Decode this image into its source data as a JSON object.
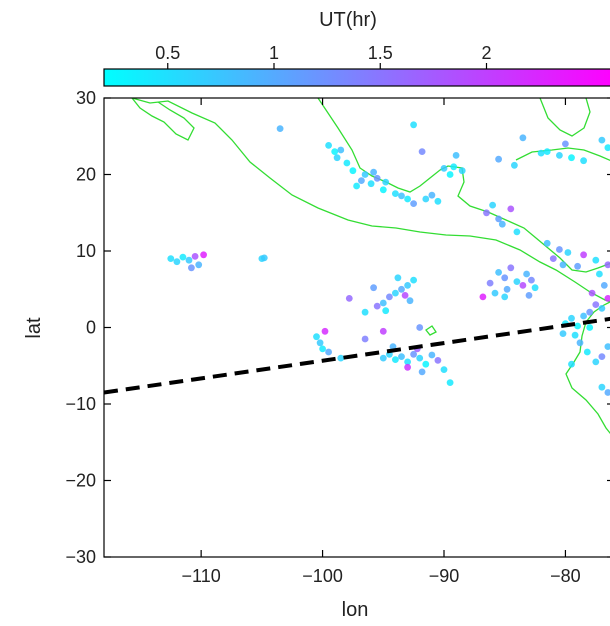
{
  "chart_data": {
    "type": "scatter",
    "title": "",
    "xlabel": "lon",
    "ylabel": "lat",
    "xlim": [
      -118,
      -76
    ],
    "ylim": [
      -30,
      30
    ],
    "xticks": [
      -110,
      -100,
      -90,
      -80
    ],
    "yticks": [
      30,
      20,
      10,
      0,
      -10,
      -20,
      -30
    ],
    "colorbar": {
      "label": "UT(hr)",
      "range": [
        0.2,
        2.6
      ],
      "ticks": [
        0.5,
        1,
        1.5,
        2
      ],
      "colors": [
        "#00ffff",
        "#ff00ff"
      ]
    },
    "coastline_color": "#33dd33",
    "dashed_line": {
      "color": "#000000",
      "points": [
        [
          -118,
          -8.5
        ],
        [
          -76,
          1.2
        ]
      ]
    },
    "points": [
      [
        -112.5,
        9.0,
        0.5
      ],
      [
        -112.0,
        8.6,
        0.6
      ],
      [
        -111.5,
        9.2,
        0.4
      ],
      [
        -111.0,
        8.8,
        0.7
      ],
      [
        -110.5,
        9.3,
        1.8
      ],
      [
        -110.2,
        8.2,
        0.9
      ],
      [
        -109.8,
        9.5,
        2.3
      ],
      [
        -110.8,
        7.8,
        1.2
      ],
      [
        -105.0,
        9.0,
        0.6
      ],
      [
        -104.8,
        9.1,
        0.7
      ],
      [
        -103.5,
        26.0,
        0.9
      ],
      [
        -99.5,
        23.8,
        0.5
      ],
      [
        -99.0,
        23.0,
        0.3
      ],
      [
        -98.5,
        23.2,
        0.8
      ],
      [
        -98.8,
        22.2,
        0.6
      ],
      [
        -98.0,
        21.5,
        0.4
      ],
      [
        -97.5,
        20.5,
        0.3
      ],
      [
        -96.8,
        19.2,
        1.0
      ],
      [
        -96.0,
        18.8,
        0.5
      ],
      [
        -96.5,
        20.0,
        0.7
      ],
      [
        -97.2,
        18.5,
        0.4
      ],
      [
        -95.5,
        19.5,
        1.2
      ],
      [
        -94.8,
        19.0,
        0.6
      ],
      [
        -95.0,
        18.0,
        0.3
      ],
      [
        -94.0,
        17.5,
        0.5
      ],
      [
        -93.5,
        17.2,
        0.8
      ],
      [
        -93.0,
        16.8,
        0.4
      ],
      [
        -92.5,
        16.2,
        1.1
      ],
      [
        -91.5,
        16.8,
        0.6
      ],
      [
        -91.0,
        17.3,
        0.9
      ],
      [
        -90.5,
        16.5,
        0.5
      ],
      [
        -90.0,
        20.8,
        0.7
      ],
      [
        -89.2,
        21.0,
        0.4
      ],
      [
        -88.5,
        20.5,
        0.6
      ],
      [
        -89.5,
        20.0,
        0.3
      ],
      [
        -91.8,
        23.0,
        1.3
      ],
      [
        -92.5,
        26.5,
        0.5
      ],
      [
        -89.0,
        22.5,
        0.8
      ],
      [
        -95.8,
        20.3,
        0.9
      ],
      [
        -86.5,
        15.0,
        1.5
      ],
      [
        -85.5,
        14.2,
        1.1
      ],
      [
        -86.0,
        16.0,
        0.6
      ],
      [
        -84.5,
        15.5,
        1.8
      ],
      [
        -85.2,
        13.5,
        0.9
      ],
      [
        -84.0,
        12.5,
        0.5
      ],
      [
        -85.5,
        7.2,
        0.8
      ],
      [
        -85.0,
        6.5,
        1.2
      ],
      [
        -84.5,
        7.8,
        1.5
      ],
      [
        -84.0,
        6.0,
        0.6
      ],
      [
        -83.5,
        5.5,
        1.9
      ],
      [
        -84.8,
        5.0,
        1.0
      ],
      [
        -85.8,
        4.5,
        0.7
      ],
      [
        -86.2,
        5.8,
        1.4
      ],
      [
        -83.2,
        7.0,
        0.9
      ],
      [
        -82.8,
        6.2,
        1.3
      ],
      [
        -82.5,
        5.2,
        0.5
      ],
      [
        -86.8,
        4.0,
        2.3
      ],
      [
        -83.0,
        4.2,
        1.1
      ],
      [
        -85.0,
        4.0,
        0.6
      ],
      [
        -92.5,
        6.2,
        0.5
      ],
      [
        -93.0,
        5.5,
        0.7
      ],
      [
        -93.5,
        5.0,
        1.0
      ],
      [
        -94.0,
        4.5,
        0.6
      ],
      [
        -94.5,
        4.0,
        1.3
      ],
      [
        -95.0,
        3.2,
        0.8
      ],
      [
        -95.5,
        2.8,
        1.5
      ],
      [
        -94.8,
        2.2,
        0.4
      ],
      [
        -93.2,
        4.2,
        1.9
      ],
      [
        -92.8,
        3.5,
        0.9
      ],
      [
        -97.8,
        3.8,
        1.6
      ],
      [
        -96.5,
        2.0,
        0.5
      ],
      [
        -95.8,
        5.2,
        1.1
      ],
      [
        -93.8,
        6.5,
        0.6
      ],
      [
        -100.5,
        -1.2,
        0.5
      ],
      [
        -100.2,
        -2.0,
        0.7
      ],
      [
        -100.0,
        -2.8,
        0.4
      ],
      [
        -99.5,
        -3.2,
        1.0
      ],
      [
        -99.8,
        -0.5,
        2.2
      ],
      [
        -98.5,
        -4.0,
        0.6
      ],
      [
        -96.5,
        -1.5,
        1.4
      ],
      [
        -95.0,
        -0.5,
        2.0
      ],
      [
        -92.0,
        0.0,
        1.2
      ],
      [
        -94.5,
        -3.5,
        0.6
      ],
      [
        -94.0,
        -4.2,
        0.4
      ],
      [
        -93.5,
        -3.8,
        0.8
      ],
      [
        -93.0,
        -4.5,
        0.5
      ],
      [
        -92.5,
        -3.5,
        1.2
      ],
      [
        -92.0,
        -4.0,
        0.6
      ],
      [
        -91.5,
        -4.8,
        0.3
      ],
      [
        -91.0,
        -3.6,
        0.9
      ],
      [
        -90.5,
        -4.3,
        1.5
      ],
      [
        -95.0,
        -4.0,
        0.7
      ],
      [
        -93.0,
        -5.2,
        2.1
      ],
      [
        -92.2,
        -2.8,
        1.7
      ],
      [
        -90.0,
        -5.5,
        0.5
      ],
      [
        -89.5,
        -7.2,
        0.4
      ],
      [
        -91.8,
        -5.8,
        1.0
      ],
      [
        -94.2,
        -2.5,
        0.9
      ],
      [
        -80.0,
        0.5,
        0.4
      ],
      [
        -79.5,
        1.2,
        0.6
      ],
      [
        -79.0,
        0.2,
        0.3
      ],
      [
        -78.5,
        1.5,
        0.8
      ],
      [
        -78.0,
        2.0,
        1.2
      ],
      [
        -77.5,
        3.0,
        1.5
      ],
      [
        -77.0,
        2.5,
        0.7
      ],
      [
        -76.5,
        3.8,
        2.2
      ],
      [
        -77.8,
        4.5,
        1.8
      ],
      [
        -76.8,
        5.5,
        1.0
      ],
      [
        -77.2,
        7.0,
        0.5
      ],
      [
        -76.5,
        8.2,
        1.6
      ],
      [
        -79.2,
        -1.0,
        0.5
      ],
      [
        -78.8,
        -2.0,
        0.9
      ],
      [
        -78.2,
        -3.2,
        0.4
      ],
      [
        -77.5,
        -4.5,
        0.6
      ],
      [
        -77.0,
        -3.8,
        1.3
      ],
      [
        -76.5,
        -2.5,
        0.8
      ],
      [
        -79.5,
        -4.8,
        0.5
      ],
      [
        -78.0,
        0.0,
        0.3
      ],
      [
        -77.0,
        -7.8,
        0.6
      ],
      [
        -76.5,
        -8.5,
        1.0
      ],
      [
        -80.2,
        -0.8,
        0.7
      ],
      [
        -81.5,
        11.0,
        0.8
      ],
      [
        -80.5,
        10.2,
        1.2
      ],
      [
        -79.8,
        9.8,
        0.6
      ],
      [
        -81.0,
        9.0,
        1.5
      ],
      [
        -80.2,
        8.2,
        0.9
      ],
      [
        -78.5,
        9.5,
        2.0
      ],
      [
        -77.5,
        8.8,
        0.5
      ],
      [
        -79.0,
        8.0,
        1.1
      ],
      [
        -82.0,
        22.8,
        0.5
      ],
      [
        -81.5,
        23.0,
        0.4
      ],
      [
        -80.5,
        22.5,
        0.6
      ],
      [
        -79.5,
        22.2,
        0.3
      ],
      [
        -78.5,
        21.8,
        0.5
      ],
      [
        -77.0,
        24.5,
        0.7
      ],
      [
        -76.5,
        23.5,
        0.4
      ],
      [
        -85.5,
        22.0,
        1.0
      ],
      [
        -84.2,
        21.2,
        0.6
      ],
      [
        -83.5,
        24.8,
        0.9
      ],
      [
        -80.0,
        24.0,
        1.2
      ]
    ]
  }
}
